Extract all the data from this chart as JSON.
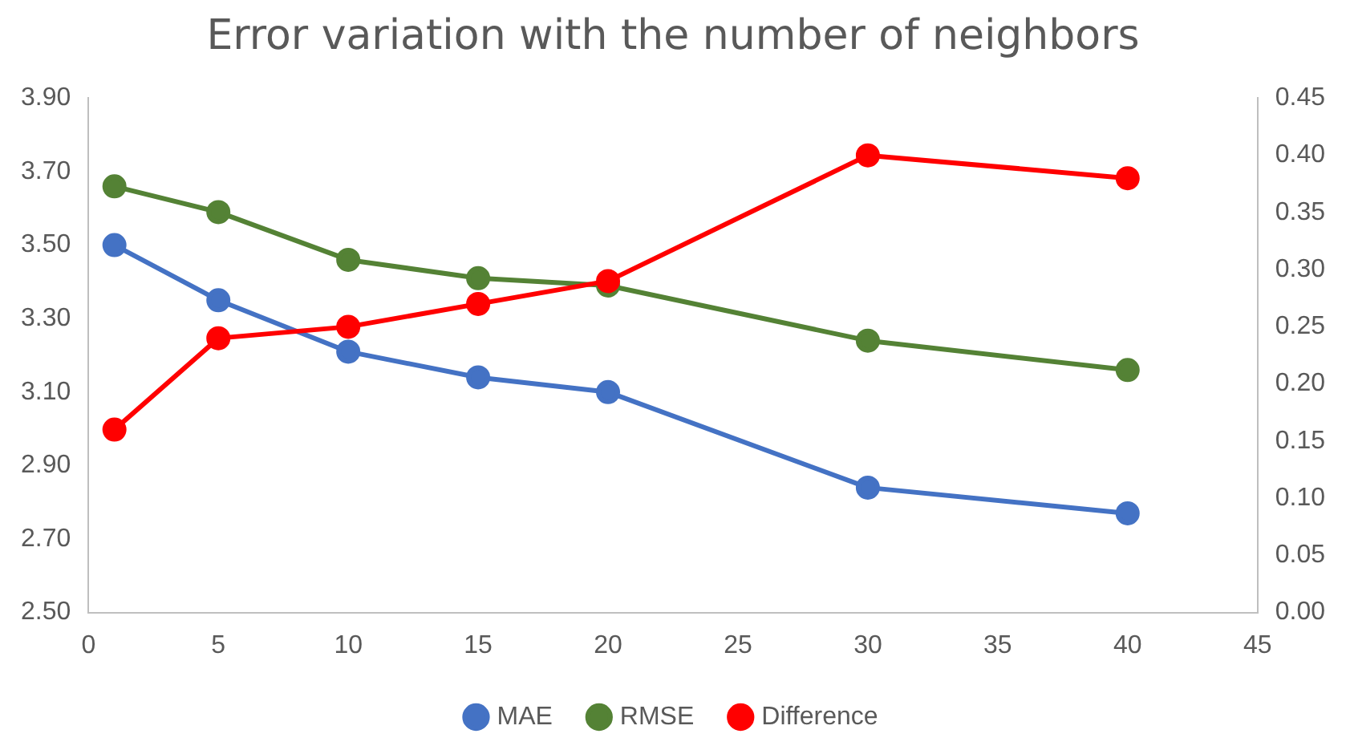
{
  "chart_data": {
    "type": "line",
    "title": "Error variation with the number of neighbors",
    "x": [
      1,
      5,
      10,
      15,
      20,
      30,
      40
    ],
    "series": [
      {
        "name": "MAE",
        "color": "#4472c4",
        "values": [
          3.5,
          3.35,
          3.21,
          3.14,
          3.1,
          2.84,
          2.77
        ]
      },
      {
        "name": "RMSE",
        "color": "#548235",
        "values": [
          3.66,
          3.59,
          3.46,
          3.41,
          3.39,
          3.24,
          3.16
        ]
      },
      {
        "name": "Difference",
        "color": "#ff0000",
        "axis": "y2",
        "values": [
          0.16,
          0.24,
          0.25,
          0.27,
          0.29,
          0.4,
          0.38
        ]
      }
    ],
    "xlim": [
      0,
      45
    ],
    "xticks": [
      0,
      5,
      10,
      15,
      20,
      25,
      30,
      35,
      40,
      45
    ],
    "ylim": [
      2.5,
      3.9
    ],
    "yticks": [
      {
        "value": 2.5,
        "label": "2.50"
      },
      {
        "value": 2.7,
        "label": "2.70"
      },
      {
        "value": 2.9,
        "label": "2.90"
      },
      {
        "value": 3.1,
        "label": "3.10"
      },
      {
        "value": 3.3,
        "label": "3.30"
      },
      {
        "value": 3.5,
        "label": "3.50"
      },
      {
        "value": 3.7,
        "label": "3.70"
      },
      {
        "value": 3.9,
        "label": "3.90"
      }
    ],
    "y2lim": [
      0,
      0.45
    ],
    "y2ticks": [
      {
        "value": 0,
        "label": "0.00"
      },
      {
        "value": 0.05,
        "label": "0.05"
      },
      {
        "value": 0.1,
        "label": "0.10"
      },
      {
        "value": 0.15,
        "label": "0.15"
      },
      {
        "value": 0.2,
        "label": "0.20"
      },
      {
        "value": 0.25,
        "label": "0.25"
      },
      {
        "value": 0.3,
        "label": "0.30"
      },
      {
        "value": 0.35,
        "label": "0.35"
      },
      {
        "value": 0.4,
        "label": "0.40"
      },
      {
        "value": 0.45,
        "label": "0.45"
      }
    ],
    "grid": false,
    "legend": "bottom",
    "marker": "circle",
    "line_style": "solid"
  }
}
